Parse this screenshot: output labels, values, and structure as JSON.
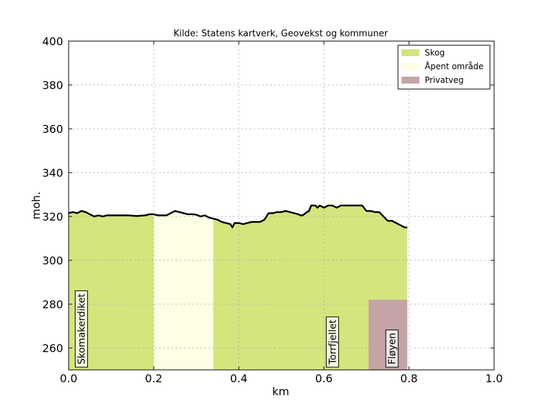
{
  "chart_data": {
    "type": "area",
    "title": "Kilde: Statens kartverk, Geovekst og kommuner",
    "xlabel": "km",
    "ylabel": "moh.",
    "xlim": [
      0.0,
      1.0
    ],
    "ylim": [
      250,
      400
    ],
    "xticks": [
      "0.0",
      "0.2",
      "0.4",
      "0.6",
      "0.8",
      "1.0"
    ],
    "yticks": [
      "260",
      "280",
      "300",
      "320",
      "340",
      "360",
      "380",
      "400"
    ],
    "grid": true,
    "legend_position": "top-right",
    "legend": [
      {
        "label": "Skog",
        "color": "#d4e57e"
      },
      {
        "label": "Åpent område",
        "color": "#fefee4"
      },
      {
        "label": "Privatveg",
        "color": "#c4a4a4"
      }
    ],
    "land_cover": [
      {
        "type": "Skog",
        "x_start": 0.0,
        "x_end": 0.2,
        "color": "#d4e57e"
      },
      {
        "type": "Åpent område",
        "x_start": 0.2,
        "x_end": 0.34,
        "color": "#fefee4"
      },
      {
        "type": "Skog",
        "x_start": 0.34,
        "x_end": 0.796,
        "color": "#d4e57e"
      }
    ],
    "road": {
      "type": "Privatveg",
      "x_start": 0.705,
      "x_end": 0.796,
      "y_top": 282,
      "color": "#c4a4a4"
    },
    "profile": {
      "x": [
        0.0,
        0.01,
        0.02,
        0.03,
        0.04,
        0.05,
        0.06,
        0.07,
        0.08,
        0.09,
        0.1,
        0.12,
        0.14,
        0.16,
        0.18,
        0.19,
        0.2,
        0.21,
        0.22,
        0.23,
        0.24,
        0.25,
        0.26,
        0.27,
        0.28,
        0.29,
        0.3,
        0.31,
        0.32,
        0.33,
        0.34,
        0.35,
        0.36,
        0.37,
        0.38,
        0.385,
        0.39,
        0.4,
        0.41,
        0.42,
        0.43,
        0.44,
        0.45,
        0.46,
        0.47,
        0.48,
        0.49,
        0.5,
        0.51,
        0.52,
        0.53,
        0.54,
        0.545,
        0.55,
        0.56,
        0.565,
        0.57,
        0.58,
        0.585,
        0.59,
        0.6,
        0.61,
        0.615,
        0.62,
        0.63,
        0.64,
        0.66,
        0.68,
        0.69,
        0.7,
        0.705,
        0.71,
        0.72,
        0.73,
        0.74,
        0.75,
        0.76,
        0.77,
        0.78,
        0.79,
        0.796
      ],
      "y": [
        321.5,
        322,
        321.5,
        322.5,
        322,
        321,
        320,
        320.5,
        320,
        320.5,
        320.5,
        320.5,
        320.5,
        320.2,
        320.5,
        321,
        321,
        320.5,
        320.5,
        320.5,
        321.5,
        322.5,
        322,
        321.5,
        321,
        321,
        320.8,
        320,
        320.5,
        319.5,
        319,
        318.5,
        317.5,
        317,
        316.5,
        315,
        317,
        317,
        316.5,
        317,
        317.5,
        317.5,
        317.5,
        318.5,
        321.5,
        321.5,
        322,
        322,
        322.5,
        322,
        321.5,
        321,
        320.5,
        320.5,
        322,
        322.5,
        325,
        325,
        324,
        325,
        324,
        325,
        325,
        325,
        324,
        325,
        325,
        325,
        325,
        322.5,
        322.5,
        322.5,
        322,
        322,
        320,
        318,
        318,
        317,
        316,
        315,
        315
      ]
    },
    "places": [
      {
        "name": "Skomakerdiket",
        "x": 0.03
      },
      {
        "name": "Torrfjellet",
        "x": 0.62
      },
      {
        "name": "Fløyen",
        "x": 0.76
      }
    ]
  }
}
